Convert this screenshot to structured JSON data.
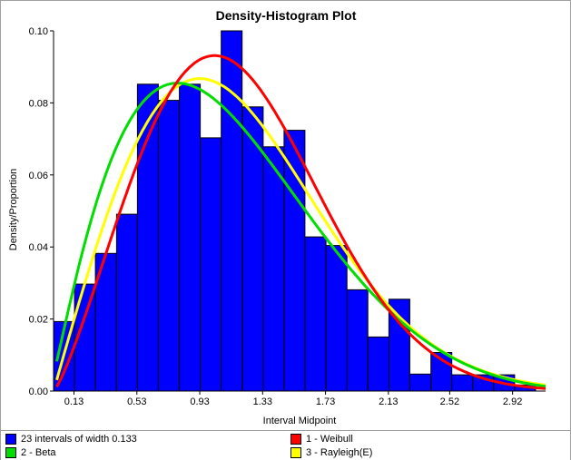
{
  "chart_data": {
    "type": "bar",
    "title": "Density-Histogram Plot",
    "xlabel": "Interval Midpoint",
    "ylabel": "Density/Proportion",
    "x_ticks": [
      "0.13",
      "0.53",
      "0.93",
      "1.33",
      "1.73",
      "2.13",
      "2.52",
      "2.92"
    ],
    "y_ticks": [
      "0.00",
      "0.02",
      "0.04",
      "0.06",
      "0.08",
      "0.10"
    ],
    "ylim": [
      0,
      0.1
    ],
    "xlim": [
      0,
      3.13
    ],
    "bin_width": 0.133,
    "bins": [
      0.067,
      0.2,
      0.333,
      0.467,
      0.6,
      0.733,
      0.867,
      1.0,
      1.133,
      1.267,
      1.4,
      1.533,
      1.667,
      1.8,
      1.933,
      2.067,
      2.2,
      2.333,
      2.467,
      2.6,
      2.733,
      2.867,
      3.0
    ],
    "values": [
      0.0193,
      0.0297,
      0.0382,
      0.0491,
      0.0852,
      0.0807,
      0.0852,
      0.0703,
      0.1,
      0.0789,
      0.0678,
      0.0724,
      0.0428,
      0.0404,
      0.0281,
      0.015,
      0.0255,
      0.0047,
      0.0107,
      0.0045,
      0.0045,
      0.0045,
      0.0017
    ],
    "bar_color": "#0000ff",
    "series": [
      {
        "name": "1 - Weibull",
        "color": "#ff0000"
      },
      {
        "name": "2 - Beta",
        "color": "#00dd00"
      },
      {
        "name": "3 - Rayleigh(E)",
        "color": "#ffff00"
      }
    ],
    "legend_position": "bottom",
    "grid": false
  },
  "legend": {
    "intervals_label": "23 intervals of width 0.133",
    "intervals_color": "#0000ff"
  }
}
